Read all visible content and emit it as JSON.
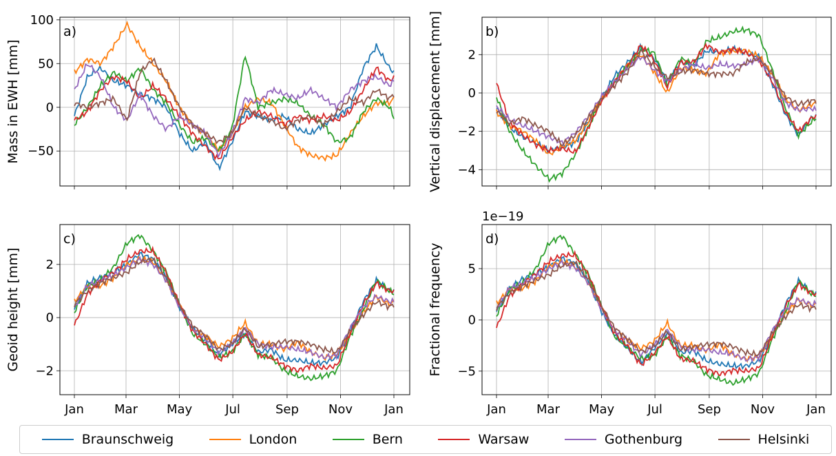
{
  "colors": {
    "Braunschweig": "#1f77b4",
    "London": "#ff7f0e",
    "Bern": "#2ca02c",
    "Warsaw": "#d62728",
    "Gothenburg": "#9467bd",
    "Helsinki": "#8c564b"
  },
  "legend": [
    "Braunschweig",
    "London",
    "Bern",
    "Warsaw",
    "Gothenburg",
    "Helsinki"
  ],
  "chart_data": [
    {
      "type": "line",
      "panel_label": "a)",
      "title": "",
      "xlabel": "",
      "ylabel": "Mass in EWH [mm]",
      "xlim": [
        0,
        365
      ],
      "ylim": [
        -90,
        103
      ],
      "yticks": [
        -50,
        0,
        50,
        100
      ],
      "ytick_labels": [
        "−50",
        "0",
        "50",
        "100"
      ],
      "xtick_labels": [],
      "grid": true,
      "x": [
        0,
        15,
        30,
        45,
        60,
        75,
        90,
        105,
        120,
        135,
        150,
        165,
        180,
        195,
        210,
        225,
        240,
        255,
        270,
        285,
        300,
        315,
        330,
        345,
        360,
        365
      ],
      "series": [
        {
          "name": "Braunschweig",
          "values": [
            -10,
            35,
            45,
            30,
            25,
            15,
            10,
            0,
            -30,
            -50,
            -40,
            -70,
            -40,
            -5,
            -10,
            -15,
            -10,
            -25,
            -30,
            -20,
            -10,
            0,
            45,
            70,
            45,
            40
          ]
        },
        {
          "name": "London",
          "values": [
            40,
            55,
            50,
            70,
            95,
            70,
            50,
            30,
            0,
            -20,
            -30,
            -50,
            -30,
            0,
            10,
            5,
            -20,
            -45,
            -55,
            -58,
            -55,
            -30,
            -10,
            5,
            5,
            10
          ]
        },
        {
          "name": "Bern",
          "values": [
            -20,
            0,
            25,
            40,
            30,
            45,
            20,
            5,
            -20,
            -40,
            -35,
            -50,
            -25,
            60,
            0,
            5,
            10,
            5,
            -10,
            -20,
            -40,
            -35,
            -5,
            10,
            0,
            -12
          ]
        },
        {
          "name": "Warsaw",
          "values": [
            -15,
            -5,
            20,
            35,
            30,
            10,
            25,
            10,
            -10,
            -30,
            -45,
            -60,
            -35,
            -15,
            -5,
            -10,
            -20,
            -10,
            -15,
            -10,
            -15,
            -5,
            20,
            45,
            30,
            35
          ]
        },
        {
          "name": "Gothenburg",
          "values": [
            20,
            50,
            35,
            0,
            -15,
            15,
            -10,
            -25,
            -10,
            -20,
            -30,
            -55,
            -30,
            10,
            5,
            20,
            15,
            10,
            20,
            10,
            0,
            20,
            30,
            35,
            25,
            30
          ]
        },
        {
          "name": "Helsinki",
          "values": [
            5,
            0,
            5,
            10,
            -15,
            40,
            55,
            30,
            0,
            -20,
            -30,
            -40,
            -30,
            0,
            -10,
            -15,
            -25,
            -15,
            -10,
            -20,
            -5,
            10,
            5,
            20,
            10,
            15
          ]
        }
      ]
    },
    {
      "type": "line",
      "panel_label": "b)",
      "title": "",
      "xlabel": "",
      "ylabel": "Vertical displacement [mm]",
      "xlim": [
        0,
        365
      ],
      "ylim": [
        -4.85,
        3.95
      ],
      "yticks": [
        -4,
        -2,
        0,
        2
      ],
      "ytick_labels": [
        "−4",
        "−2",
        "0",
        "2"
      ],
      "xtick_labels": [],
      "grid": true,
      "x": [
        0,
        15,
        30,
        45,
        60,
        75,
        90,
        105,
        120,
        135,
        150,
        165,
        180,
        195,
        210,
        225,
        240,
        255,
        270,
        285,
        300,
        315,
        330,
        345,
        360,
        365
      ],
      "series": [
        {
          "name": "Braunschweig",
          "values": [
            -0.8,
            -1.8,
            -2.3,
            -2.6,
            -3.0,
            -2.8,
            -2.6,
            -1.5,
            -0.3,
            0.9,
            1.6,
            2.4,
            1.8,
            0.6,
            1.6,
            1.4,
            2.2,
            2.1,
            2.3,
            2.1,
            1.9,
            0.5,
            -1.1,
            -2.2,
            -1.3,
            -1.2
          ]
        },
        {
          "name": "London",
          "values": [
            -1.0,
            -1.7,
            -2.0,
            -2.5,
            -3.2,
            -2.8,
            -2.5,
            -1.5,
            -0.3,
            0.6,
            1.5,
            2.0,
            1.1,
            0.0,
            1.3,
            1.2,
            1.0,
            2.1,
            2.2,
            2.2,
            1.9,
            1.0,
            -0.3,
            -0.9,
            -0.6,
            -0.5
          ]
        },
        {
          "name": "Bern",
          "values": [
            -0.2,
            -2.0,
            -3.0,
            -3.8,
            -4.5,
            -4.2,
            -3.2,
            -1.8,
            -0.3,
            0.6,
            1.4,
            2.3,
            2.1,
            0.4,
            1.8,
            1.5,
            2.7,
            2.9,
            3.2,
            3.3,
            3.0,
            1.2,
            -0.8,
            -2.2,
            -1.5,
            -1.3
          ]
        },
        {
          "name": "Warsaw",
          "values": [
            0.5,
            -1.5,
            -2.2,
            -2.7,
            -3.0,
            -2.9,
            -3.1,
            -1.8,
            -0.4,
            0.6,
            1.4,
            2.5,
            1.7,
            0.3,
            1.6,
            1.6,
            2.5,
            2.1,
            2.3,
            2.1,
            1.7,
            0.6,
            -1.0,
            -2.0,
            -1.3,
            -1.2
          ]
        },
        {
          "name": "Gothenburg",
          "values": [
            -0.7,
            -1.4,
            -1.7,
            -2.0,
            -2.3,
            -2.6,
            -2.1,
            -1.2,
            -0.2,
            0.6,
            1.3,
            1.9,
            1.2,
            0.6,
            1.2,
            1.5,
            1.3,
            1.5,
            1.4,
            1.5,
            1.8,
            0.8,
            -0.5,
            -0.9,
            -0.8,
            -0.9
          ]
        },
        {
          "name": "Helsinki",
          "values": [
            -0.9,
            -1.6,
            -1.3,
            -1.7,
            -2.0,
            -2.7,
            -2.2,
            -1.3,
            -0.3,
            0.4,
            1.1,
            2.2,
            1.4,
            0.8,
            1.1,
            1.2,
            1.0,
            1.0,
            1.0,
            1.6,
            1.8,
            1.0,
            -0.2,
            -0.6,
            -0.4,
            -0.4
          ]
        }
      ]
    },
    {
      "type": "line",
      "panel_label": "c)",
      "title": "",
      "xlabel": "",
      "ylabel": "Geoid height [mm]",
      "xlim": [
        0,
        365
      ],
      "ylim": [
        -2.9,
        3.5
      ],
      "yticks": [
        -2,
        0,
        2
      ],
      "ytick_labels": [
        "−2",
        "0",
        "2"
      ],
      "xtick_labels": [
        "Jan",
        "Mar",
        "May",
        "Jul",
        "Sep",
        "Nov",
        "Jan"
      ],
      "xtick_positions": [
        0,
        59,
        120,
        181,
        243,
        304,
        365
      ],
      "grid": true,
      "x": [
        0,
        15,
        30,
        45,
        60,
        75,
        90,
        105,
        120,
        135,
        150,
        165,
        180,
        195,
        210,
        225,
        240,
        255,
        270,
        285,
        300,
        315,
        330,
        345,
        360,
        365
      ],
      "series": [
        {
          "name": "Braunschweig",
          "values": [
            0.3,
            1.3,
            1.5,
            1.7,
            2.0,
            2.4,
            2.2,
            1.5,
            0.4,
            -0.4,
            -0.9,
            -1.4,
            -1.0,
            -0.6,
            -1.3,
            -1.2,
            -1.6,
            -1.6,
            -1.7,
            -1.7,
            -1.5,
            -0.5,
            0.6,
            1.4,
            1.0,
            1.0
          ]
        },
        {
          "name": "London",
          "values": [
            0.6,
            1.2,
            1.2,
            1.5,
            2.0,
            2.2,
            2.1,
            1.4,
            0.5,
            -0.4,
            -0.7,
            -1.1,
            -0.8,
            -0.2,
            -1.0,
            -1.0,
            -1.2,
            -0.9,
            -1.3,
            -1.5,
            -1.4,
            -0.6,
            0.2,
            0.8,
            0.5,
            0.6
          ]
        },
        {
          "name": "Bern",
          "values": [
            0.2,
            1.2,
            1.4,
            1.9,
            2.8,
            3.1,
            2.5,
            1.7,
            0.5,
            -0.6,
            -1.0,
            -1.5,
            -1.3,
            -0.6,
            -1.4,
            -1.5,
            -2.0,
            -2.2,
            -2.3,
            -2.2,
            -2.0,
            -0.7,
            0.3,
            1.4,
            1.0,
            0.9
          ]
        },
        {
          "name": "Warsaw",
          "values": [
            -0.3,
            0.9,
            1.4,
            1.7,
            2.2,
            2.5,
            2.5,
            1.7,
            0.5,
            -0.5,
            -1.0,
            -1.6,
            -1.3,
            -0.6,
            -1.4,
            -1.5,
            -1.8,
            -2.0,
            -1.8,
            -1.9,
            -1.8,
            -0.6,
            0.5,
            1.3,
            1.0,
            1.0
          ]
        },
        {
          "name": "Gothenburg",
          "values": [
            0.4,
            1.2,
            1.4,
            1.6,
            1.9,
            2.2,
            2.0,
            1.4,
            0.4,
            -0.4,
            -0.8,
            -1.3,
            -1.0,
            -0.4,
            -1.0,
            -1.1,
            -1.1,
            -1.2,
            -1.3,
            -1.5,
            -1.4,
            -0.4,
            0.4,
            0.8,
            0.6,
            0.6
          ]
        },
        {
          "name": "Helsinki",
          "values": [
            0.5,
            1.0,
            1.3,
            1.5,
            1.7,
            2.1,
            2.2,
            1.5,
            0.5,
            -0.3,
            -0.7,
            -1.2,
            -1.0,
            -0.4,
            -1.1,
            -1.0,
            -0.9,
            -0.9,
            -1.0,
            -1.2,
            -1.3,
            -0.5,
            0.1,
            0.6,
            0.4,
            0.5
          ]
        }
      ]
    },
    {
      "type": "line",
      "panel_label": "d)",
      "title": "",
      "xlabel": "",
      "ylabel": "Fractional frequency",
      "offset_text": "1e−19",
      "xlim": [
        0,
        365
      ],
      "ylim": [
        -7.3,
        9.3
      ],
      "yticks": [
        -5,
        0,
        5
      ],
      "ytick_labels": [
        "−5",
        "0",
        "5"
      ],
      "xtick_labels": [
        "Jan",
        "Mar",
        "May",
        "Jul",
        "Sep",
        "Nov",
        "Jan"
      ],
      "xtick_positions": [
        0,
        59,
        120,
        181,
        243,
        304,
        365
      ],
      "grid": true,
      "x": [
        0,
        15,
        30,
        45,
        60,
        75,
        90,
        105,
        120,
        135,
        150,
        165,
        180,
        195,
        210,
        225,
        240,
        255,
        270,
        285,
        300,
        315,
        330,
        345,
        360,
        365
      ],
      "series": [
        {
          "name": "Braunschweig",
          "values": [
            0.8,
            3.0,
            4.0,
            4.5,
            5.2,
            6.0,
            5.5,
            3.8,
            0.8,
            -1.5,
            -2.8,
            -4.2,
            -2.8,
            -1.2,
            -3.2,
            -3.0,
            -4.0,
            -4.3,
            -4.5,
            -4.5,
            -4.0,
            -1.5,
            1.5,
            3.8,
            2.6,
            2.6
          ]
        },
        {
          "name": "London",
          "values": [
            1.6,
            3.0,
            3.1,
            3.8,
            5.3,
            5.7,
            5.2,
            3.6,
            1.2,
            -1.0,
            -2.0,
            -2.8,
            -2.1,
            -0.3,
            -2.5,
            -2.5,
            -3.0,
            -2.3,
            -3.4,
            -3.8,
            -3.6,
            -1.5,
            0.6,
            2.0,
            1.4,
            1.5
          ]
        },
        {
          "name": "Bern",
          "values": [
            0.4,
            3.0,
            3.6,
            5.0,
            7.5,
            8.2,
            6.4,
            4.4,
            1.3,
            -1.6,
            -2.7,
            -3.8,
            -3.5,
            -1.6,
            -3.5,
            -4.0,
            -5.4,
            -5.8,
            -6.2,
            -5.8,
            -5.2,
            -1.9,
            0.8,
            3.8,
            2.5,
            2.4
          ]
        },
        {
          "name": "Warsaw",
          "values": [
            -0.8,
            2.4,
            3.5,
            4.5,
            5.7,
            6.3,
            6.3,
            4.4,
            1.3,
            -1.3,
            -2.6,
            -4.4,
            -3.3,
            -1.6,
            -3.8,
            -4.0,
            -4.8,
            -5.3,
            -4.9,
            -5.0,
            -4.7,
            -1.6,
            1.3,
            3.5,
            2.6,
            2.5
          ]
        },
        {
          "name": "Gothenburg",
          "values": [
            1.1,
            3.1,
            3.6,
            4.2,
            5.0,
            5.6,
            5.1,
            3.6,
            1.0,
            -1.0,
            -2.1,
            -3.4,
            -2.5,
            -1.0,
            -2.6,
            -2.9,
            -2.9,
            -3.2,
            -3.3,
            -3.9,
            -3.6,
            -1.1,
            1.0,
            2.0,
            1.5,
            1.6
          ]
        },
        {
          "name": "Helsinki",
          "values": [
            1.2,
            2.6,
            3.3,
            3.9,
            4.4,
            5.3,
            5.6,
            3.9,
            1.3,
            -0.8,
            -1.9,
            -3.1,
            -2.6,
            -1.1,
            -2.9,
            -2.6,
            -2.4,
            -2.3,
            -2.6,
            -3.2,
            -3.4,
            -1.3,
            0.3,
            1.5,
            1.1,
            1.3
          ]
        }
      ]
    }
  ]
}
